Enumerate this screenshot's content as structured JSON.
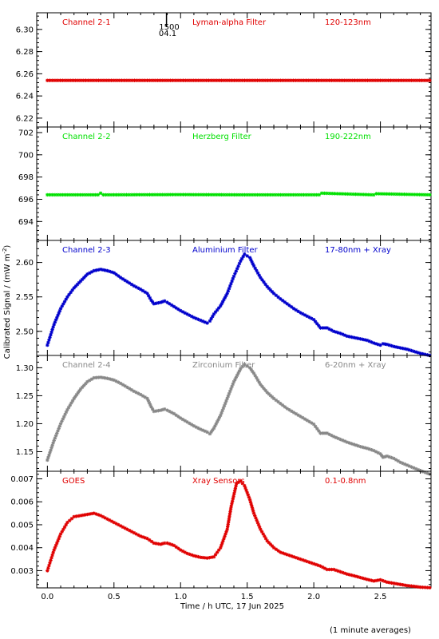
{
  "figure": {
    "ylabel": "Calibrated Signal / (mW m",
    "ylabel_sup": "-2",
    "ylabel_close": ")",
    "xlabel": "Time / h UTC, 17 Jun 2025",
    "footnote": "(1 minute averages)",
    "marker": "1500",
    "marker_sub": "04.1"
  },
  "chart_data": [
    {
      "type": "scatter",
      "channel": "Channel 2-1",
      "filter": "Lyman-alpha Filter",
      "band": "120-123nm",
      "color": "#e00000",
      "ylim": [
        6.212,
        6.315
      ],
      "yticks": [
        "6.22",
        "6.24",
        "6.26",
        "6.28",
        "6.30"
      ],
      "xlim": [
        -0.08,
        2.88
      ],
      "x": [
        0.0,
        0.5,
        1.0,
        1.5,
        2.0,
        2.5,
        2.87
      ],
      "y": [
        6.254,
        6.254,
        6.254,
        6.254,
        6.254,
        6.254,
        6.254
      ]
    },
    {
      "type": "scatter",
      "channel": "Channel 2-2",
      "filter": "Herzberg Filter",
      "band": "190-222nm",
      "color": "#00e000",
      "ylim": [
        692.3,
        702.5
      ],
      "yticks": [
        "694",
        "696",
        "698",
        "700",
        "702"
      ],
      "xlim": [
        -0.08,
        2.88
      ],
      "x": [
        0.0,
        0.38,
        0.4,
        0.42,
        1.0,
        1.5,
        2.04,
        2.06,
        2.45,
        2.47,
        2.87
      ],
      "y": [
        696.4,
        696.4,
        696.55,
        696.4,
        696.42,
        696.4,
        696.4,
        696.55,
        696.4,
        696.5,
        696.4
      ]
    },
    {
      "type": "scatter",
      "channel": "Channel 2-3",
      "filter": "Aluminium Filter",
      "band": "17-80nm + Xray",
      "color": "#0000cc",
      "ylim": [
        2.465,
        2.632
      ],
      "yticks": [
        "2.50",
        "2.55",
        "2.60"
      ],
      "xlim": [
        -0.08,
        2.88
      ],
      "x": [
        0.0,
        0.05,
        0.1,
        0.15,
        0.2,
        0.25,
        0.3,
        0.35,
        0.4,
        0.45,
        0.5,
        0.55,
        0.6,
        0.65,
        0.7,
        0.75,
        0.78,
        0.8,
        0.85,
        0.88,
        0.9,
        0.95,
        1.0,
        1.05,
        1.1,
        1.15,
        1.2,
        1.22,
        1.25,
        1.3,
        1.35,
        1.4,
        1.45,
        1.48,
        1.52,
        1.55,
        1.6,
        1.65,
        1.7,
        1.75,
        1.8,
        1.85,
        1.9,
        1.95,
        2.0,
        2.05,
        2.1,
        2.15,
        2.2,
        2.25,
        2.3,
        2.35,
        2.4,
        2.45,
        2.5,
        2.52,
        2.55,
        2.6,
        2.65,
        2.7,
        2.75,
        2.8,
        2.87
      ],
      "y": [
        2.48,
        2.51,
        2.533,
        2.55,
        2.563,
        2.573,
        2.583,
        2.588,
        2.59,
        2.588,
        2.585,
        2.578,
        2.572,
        2.566,
        2.561,
        2.555,
        2.545,
        2.54,
        2.542,
        2.544,
        2.542,
        2.536,
        2.53,
        2.525,
        2.52,
        2.516,
        2.512,
        2.515,
        2.525,
        2.537,
        2.555,
        2.58,
        2.602,
        2.612,
        2.607,
        2.595,
        2.578,
        2.565,
        2.555,
        2.547,
        2.54,
        2.533,
        2.527,
        2.522,
        2.517,
        2.505,
        2.505,
        2.5,
        2.497,
        2.493,
        2.491,
        2.489,
        2.487,
        2.483,
        2.48,
        2.482,
        2.481,
        2.478,
        2.476,
        2.474,
        2.471,
        2.468,
        2.465
      ]
    },
    {
      "type": "scatter",
      "channel": "Channel 2-4",
      "filter": "Zirconium Filter",
      "band": "6-20nm + Xray",
      "color": "#888888",
      "ylim": [
        1.115,
        1.322
      ],
      "yticks": [
        "1.15",
        "1.20",
        "1.25",
        "1.30"
      ],
      "xlim": [
        -0.08,
        2.88
      ],
      "x": [
        0.0,
        0.05,
        0.1,
        0.15,
        0.2,
        0.25,
        0.3,
        0.35,
        0.4,
        0.45,
        0.5,
        0.55,
        0.6,
        0.65,
        0.7,
        0.75,
        0.78,
        0.8,
        0.85,
        0.88,
        0.9,
        0.95,
        1.0,
        1.05,
        1.1,
        1.15,
        1.2,
        1.22,
        1.25,
        1.3,
        1.35,
        1.4,
        1.45,
        1.48,
        1.52,
        1.55,
        1.6,
        1.65,
        1.7,
        1.75,
        1.8,
        1.85,
        1.9,
        1.95,
        2.0,
        2.05,
        2.1,
        2.15,
        2.2,
        2.25,
        2.3,
        2.35,
        2.4,
        2.45,
        2.5,
        2.52,
        2.55,
        2.6,
        2.65,
        2.7,
        2.75,
        2.8,
        2.87
      ],
      "y": [
        1.135,
        1.17,
        1.2,
        1.225,
        1.245,
        1.262,
        1.275,
        1.282,
        1.283,
        1.281,
        1.278,
        1.272,
        1.265,
        1.258,
        1.252,
        1.245,
        1.23,
        1.222,
        1.224,
        1.226,
        1.224,
        1.218,
        1.21,
        1.203,
        1.196,
        1.19,
        1.185,
        1.182,
        1.192,
        1.215,
        1.245,
        1.275,
        1.298,
        1.306,
        1.3,
        1.29,
        1.27,
        1.256,
        1.245,
        1.236,
        1.227,
        1.22,
        1.213,
        1.206,
        1.199,
        1.183,
        1.183,
        1.177,
        1.172,
        1.167,
        1.163,
        1.159,
        1.156,
        1.152,
        1.146,
        1.14,
        1.142,
        1.138,
        1.131,
        1.126,
        1.121,
        1.116,
        1.11
      ]
    },
    {
      "type": "scatter",
      "channel": "GOES",
      "filter": "Xray Sensors",
      "band": "0.1-0.8nm",
      "color": "#e00000",
      "ylim": [
        0.00225,
        0.00733
      ],
      "yticks": [
        "0.003",
        "0.004",
        "0.005",
        "0.006",
        "0.007"
      ],
      "xlim": [
        -0.08,
        2.88
      ],
      "xticks": [
        "0.0",
        "0.5",
        "1.0",
        "1.5",
        "2.0",
        "2.5"
      ],
      "x": [
        0.0,
        0.05,
        0.1,
        0.15,
        0.2,
        0.25,
        0.3,
        0.35,
        0.4,
        0.45,
        0.5,
        0.55,
        0.6,
        0.65,
        0.7,
        0.75,
        0.8,
        0.85,
        0.88,
        0.9,
        0.95,
        1.0,
        1.05,
        1.1,
        1.15,
        1.2,
        1.25,
        1.3,
        1.35,
        1.38,
        1.42,
        1.45,
        1.48,
        1.52,
        1.55,
        1.6,
        1.65,
        1.7,
        1.75,
        1.8,
        1.85,
        1.9,
        1.95,
        2.0,
        2.05,
        2.1,
        2.15,
        2.2,
        2.25,
        2.3,
        2.35,
        2.4,
        2.45,
        2.5,
        2.55,
        2.6,
        2.65,
        2.7,
        2.75,
        2.8,
        2.87
      ],
      "y": [
        0.003,
        0.0039,
        0.0046,
        0.0051,
        0.00535,
        0.0054,
        0.00545,
        0.0055,
        0.0054,
        0.00525,
        0.0051,
        0.00495,
        0.0048,
        0.00465,
        0.0045,
        0.0044,
        0.0042,
        0.00415,
        0.0042,
        0.0042,
        0.0041,
        0.0039,
        0.00375,
        0.00365,
        0.00358,
        0.00355,
        0.0036,
        0.004,
        0.0048,
        0.0058,
        0.0068,
        0.0069,
        0.0067,
        0.0061,
        0.0055,
        0.0048,
        0.0043,
        0.004,
        0.0038,
        0.0037,
        0.0036,
        0.0035,
        0.0034,
        0.0033,
        0.0032,
        0.00305,
        0.00305,
        0.00295,
        0.00285,
        0.00278,
        0.0027,
        0.00262,
        0.00255,
        0.0026,
        0.0025,
        0.00245,
        0.0024,
        0.00235,
        0.00232,
        0.00228,
        0.00226
      ]
    }
  ]
}
